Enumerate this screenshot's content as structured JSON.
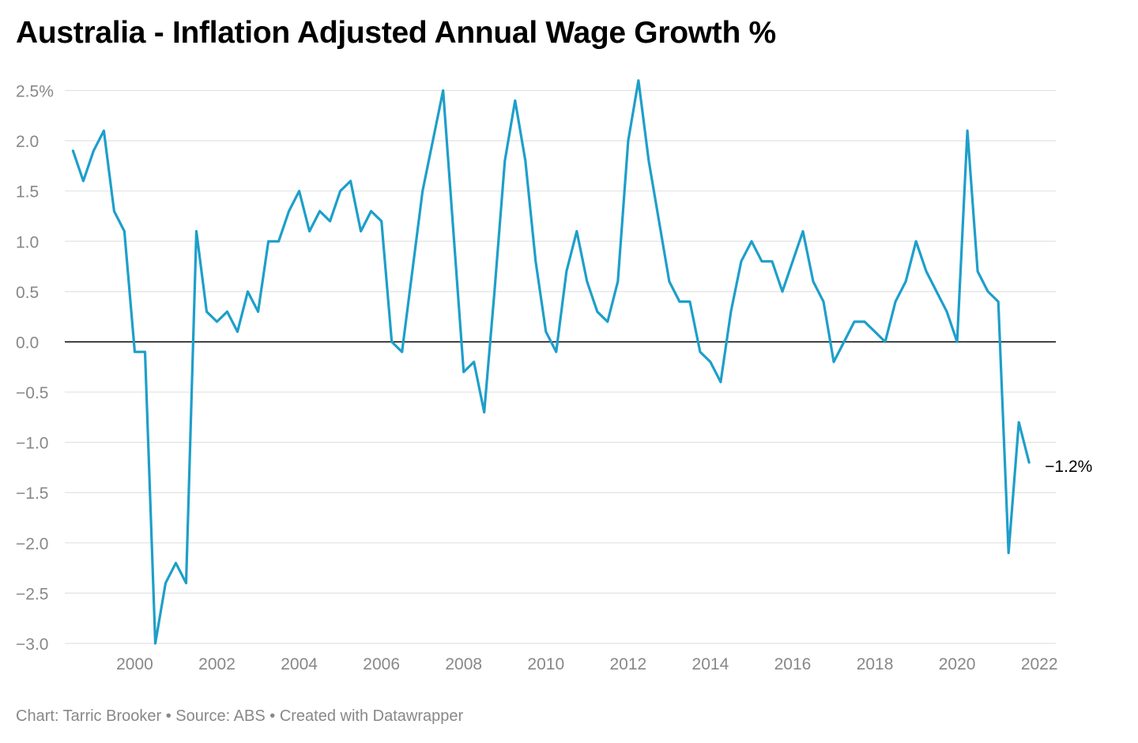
{
  "header": {
    "title": "Australia - Inflation Adjusted Annual Wage Growth %"
  },
  "footer": {
    "credit": "Chart: Tarric Brooker",
    "separator": "•",
    "source": "Source: ABS",
    "tool": "Created with Datawrapper"
  },
  "colors": {
    "line": "#1d9fca",
    "grid": "#e2e2e2",
    "zero_line": "#000000",
    "tick_text": "#888888"
  },
  "chart_data": {
    "type": "line",
    "title": "Australia - Inflation Adjusted Annual Wage Growth %",
    "xlabel": "",
    "ylabel": "",
    "ylim": [
      -3.0,
      2.5
    ],
    "xlim": [
      1998.3,
      2022.4
    ],
    "grid": true,
    "y_ticks": [
      {
        "value": 2.5,
        "label": "2.5%"
      },
      {
        "value": 2.0,
        "label": "2.0"
      },
      {
        "value": 1.5,
        "label": "1.5"
      },
      {
        "value": 1.0,
        "label": "1.0"
      },
      {
        "value": 0.5,
        "label": "0.5"
      },
      {
        "value": 0.0,
        "label": "0.0"
      },
      {
        "value": -0.5,
        "label": "−0.5"
      },
      {
        "value": -1.0,
        "label": "−1.0"
      },
      {
        "value": -1.5,
        "label": "−1.5"
      },
      {
        "value": -2.0,
        "label": "−2.0"
      },
      {
        "value": -2.5,
        "label": "−2.5"
      },
      {
        "value": -3.0,
        "label": "−3.0"
      }
    ],
    "x_ticks": [
      {
        "value": 2000,
        "label": "2000"
      },
      {
        "value": 2002,
        "label": "2002"
      },
      {
        "value": 2004,
        "label": "2004"
      },
      {
        "value": 2006,
        "label": "2006"
      },
      {
        "value": 2008,
        "label": "2008"
      },
      {
        "value": 2010,
        "label": "2010"
      },
      {
        "value": 2012,
        "label": "2012"
      },
      {
        "value": 2014,
        "label": "2014"
      },
      {
        "value": 2016,
        "label": "2016"
      },
      {
        "value": 2018,
        "label": "2018"
      },
      {
        "value": 2020,
        "label": "2020"
      },
      {
        "value": 2022,
        "label": "2022"
      }
    ],
    "end_label": "−1.2%",
    "series": [
      {
        "name": "Inflation adjusted annual wage growth",
        "x": [
          1998.5,
          1998.75,
          1999.0,
          1999.25,
          1999.5,
          1999.75,
          2000.0,
          2000.25,
          2000.5,
          2000.75,
          2001.0,
          2001.25,
          2001.5,
          2001.75,
          2002.0,
          2002.25,
          2002.5,
          2002.75,
          2003.0,
          2003.25,
          2003.5,
          2003.75,
          2004.0,
          2004.25,
          2004.5,
          2004.75,
          2005.0,
          2005.25,
          2005.5,
          2005.75,
          2006.0,
          2006.25,
          2006.5,
          2006.75,
          2007.0,
          2007.25,
          2007.5,
          2007.75,
          2008.0,
          2008.25,
          2008.5,
          2008.75,
          2009.0,
          2009.25,
          2009.5,
          2009.75,
          2010.0,
          2010.25,
          2010.5,
          2010.75,
          2011.0,
          2011.25,
          2011.5,
          2011.75,
          2012.0,
          2012.25,
          2012.5,
          2012.75,
          2013.0,
          2013.25,
          2013.5,
          2013.75,
          2014.0,
          2014.25,
          2014.5,
          2014.75,
          2015.0,
          2015.25,
          2015.5,
          2015.75,
          2016.0,
          2016.25,
          2016.5,
          2016.75,
          2017.0,
          2017.25,
          2017.5,
          2017.75,
          2018.0,
          2018.25,
          2018.5,
          2018.75,
          2019.0,
          2019.25,
          2019.5,
          2019.75,
          2020.0,
          2020.25,
          2020.5,
          2020.75,
          2021.0,
          2021.25,
          2021.5,
          2021.75
        ],
        "values": [
          1.9,
          1.6,
          1.9,
          2.1,
          1.3,
          1.1,
          -0.1,
          -0.1,
          -3.0,
          -2.4,
          -2.2,
          -2.4,
          1.1,
          0.3,
          0.2,
          0.3,
          0.1,
          0.5,
          0.3,
          1.0,
          1.0,
          1.3,
          1.5,
          1.1,
          1.3,
          1.2,
          1.5,
          1.6,
          1.1,
          1.3,
          1.2,
          0.0,
          -0.1,
          0.7,
          1.5,
          2.0,
          2.5,
          1.1,
          -0.3,
          -0.2,
          -0.7,
          0.5,
          1.8,
          2.4,
          1.8,
          0.8,
          0.1,
          -0.1,
          0.7,
          1.1,
          0.6,
          0.3,
          0.2,
          0.6,
          2.0,
          2.6,
          1.8,
          1.2,
          0.6,
          0.4,
          0.4,
          -0.1,
          -0.2,
          -0.4,
          0.3,
          0.8,
          1.0,
          0.8,
          0.8,
          0.5,
          0.8,
          1.1,
          0.6,
          0.4,
          -0.2,
          0.0,
          0.2,
          0.2,
          0.1,
          0.0,
          0.4,
          0.6,
          1.0,
          0.7,
          0.5,
          0.3,
          0.0,
          2.1,
          0.7,
          0.5,
          0.4,
          -2.1,
          -0.8,
          -1.2
        ]
      }
    ]
  }
}
